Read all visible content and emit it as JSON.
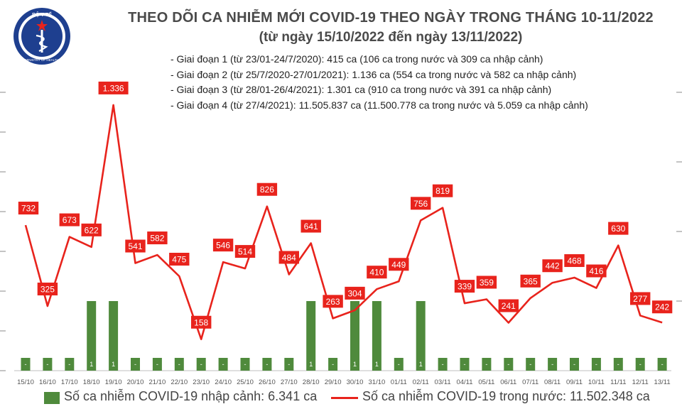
{
  "header": {
    "logo_text_top": "BỘ Y TẾ",
    "logo_text_bottom": "MINISTRY OF HEALTH",
    "title": "THEO DÕI CA NHIỄM MỚI COVID-19 THEO NGÀY TRONG THÁNG 10-11/2022",
    "subtitle": "(từ ngày 15/10/2022 đến ngày 13/11/2022)",
    "stages": [
      "- Giai đoạn 1 (từ 23/01-24/7/2020): 415 ca (106 ca trong nước và 309 ca nhập cảnh)",
      "- Giai đoạn 2 (từ 25/7/2020-27/01/2021): 1.136 ca (554 ca trong nước và 582 ca nhập cảnh)",
      "- Giai đoạn 3 (từ 28/01-26/4/2021): 1.301 ca (910 ca trong nước và 391 ca nhập cảnh)",
      "- Giai đoạn 4 (từ 27/4/2021): 11.505.837 ca (11.500.778 ca trong nước và 5.059 ca nhập cảnh)"
    ]
  },
  "colors": {
    "bar": "#4f8a3c",
    "line": "#e8231c",
    "label_box": "#e8231c",
    "label_text": "#ffffff",
    "axis_text": "#555555",
    "grid": "#d9d9d9"
  },
  "chart_data": {
    "type": "bar+line",
    "categories": [
      "15/10",
      "16/10",
      "17/10",
      "18/10",
      "19/10",
      "20/10",
      "21/10",
      "22/10",
      "23/10",
      "24/10",
      "25/10",
      "26/10",
      "27/10",
      "28/10",
      "29/10",
      "30/10",
      "31/10",
      "01/11",
      "02/11",
      "03/11",
      "04/11",
      "05/11",
      "06/11",
      "07/11",
      "08/11",
      "09/11",
      "10/11",
      "11/11",
      "12/11",
      "13/11"
    ],
    "series": [
      {
        "name": "Số ca nhiễm COVID-19 nhập cảnh: 6.341 ca",
        "type": "bar",
        "axis": "right",
        "values": [
          0,
          0,
          0,
          1,
          1,
          0,
          0,
          0,
          0,
          0,
          0,
          0,
          0,
          1,
          0,
          1,
          1,
          0,
          1,
          0,
          0,
          0,
          0,
          0,
          0,
          0,
          0,
          0,
          0,
          0
        ],
        "labels": [
          "-",
          "-",
          "-",
          "1",
          "1",
          "-",
          "-",
          "-",
          "-",
          "-",
          "-",
          "-",
          "-",
          "1",
          "-",
          "1",
          "1",
          "-",
          "1",
          "-",
          "-",
          "-",
          "-",
          "-",
          "-",
          "-",
          "-",
          "-",
          "-",
          "-"
        ]
      },
      {
        "name": "Số ca nhiễm COVID-19 trong nước: 11.502.348 ca",
        "type": "line",
        "axis": "left",
        "values": [
          732,
          325,
          673,
          622,
          1336,
          541,
          582,
          475,
          158,
          546,
          514,
          826,
          484,
          641,
          263,
          304,
          410,
          449,
          756,
          819,
          339,
          359,
          241,
          365,
          442,
          468,
          416,
          630,
          277,
          242
        ],
        "labels": [
          "732",
          "325",
          "673",
          "622",
          "1.336",
          "541",
          "582",
          "475",
          "158",
          "546",
          "514",
          "826",
          "484",
          "641",
          "263",
          "304",
          "410",
          "449",
          "756",
          "819",
          "339",
          "359",
          "241",
          "365",
          "442",
          "468",
          "416",
          "630",
          "277",
          "242"
        ]
      }
    ],
    "left_axis": {
      "ylim": [
        0,
        1400
      ],
      "ticks": [
        0,
        200,
        400,
        600,
        800,
        1000,
        1200,
        1400
      ],
      "tick_labels": [
        "",
        "",
        "",
        "",
        "",
        "",
        "",
        ""
      ]
    },
    "right_axis": {
      "ylim": [
        0,
        4
      ],
      "ticks": [
        1,
        2,
        3,
        4
      ],
      "tick_labels": [
        "",
        "",
        "",
        ""
      ]
    },
    "legend_position": "bottom"
  }
}
